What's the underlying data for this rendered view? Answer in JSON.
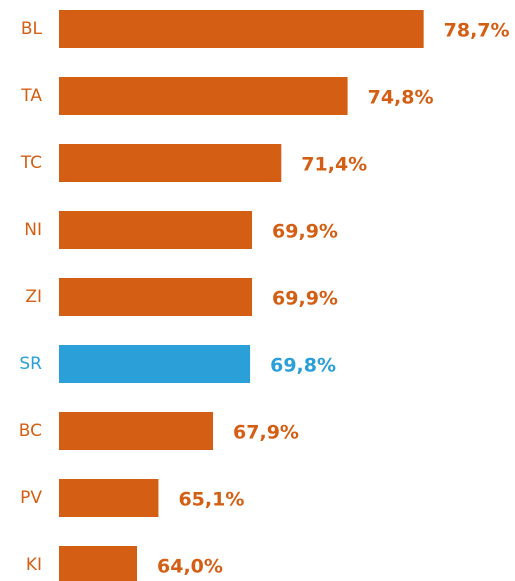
{
  "chart_data": {
    "type": "hbar",
    "categories": [
      "BL",
      "TA",
      "TC",
      "NI",
      "ZI",
      "SR",
      "BC",
      "PV",
      "KI"
    ],
    "values": [
      78.7,
      74.8,
      71.4,
      69.9,
      69.9,
      69.8,
      67.9,
      65.1,
      64.0
    ],
    "value_labels": [
      "78,7%",
      "74,8%",
      "71,4%",
      "69,9%",
      "69,9%",
      "69,8%",
      "67,9%",
      "65,1%",
      "64,0%"
    ],
    "colors": [
      "#d45f14",
      "#d45f14",
      "#d45f14",
      "#d45f14",
      "#d45f14",
      "#2a9fd8",
      "#d45f14",
      "#d45f14",
      "#d45f14"
    ],
    "xlim": [
      60,
      80
    ]
  }
}
